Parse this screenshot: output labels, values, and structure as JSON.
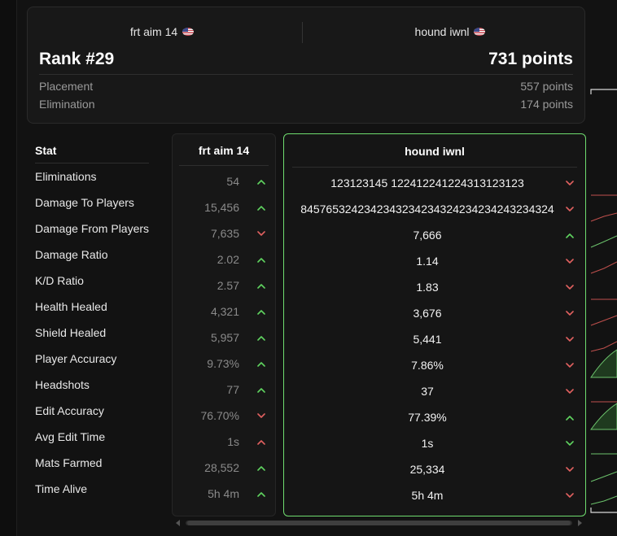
{
  "header": {
    "player1": "frt aim 14",
    "player2": "hound iwnl",
    "rank": "Rank #29",
    "points": "731 points",
    "placement_label": "Placement",
    "placement_value": "557 points",
    "elimination_label": "Elimination",
    "elimination_value": "174 points"
  },
  "table": {
    "stat_header": "Stat",
    "p1_header": "frt aim 14",
    "p2_header": "hound iwnl",
    "colors": {
      "up": "#5fd35f",
      "down": "#e0605f"
    },
    "rows": [
      {
        "label": "Eliminations",
        "p1": "54",
        "p1_trend": "up",
        "p2": "123123145 12241224122431312312­3",
        "p2_trend": "down"
      },
      {
        "label": "Damage To Players",
        "p1": "15,456",
        "p1_trend": "up",
        "p2": "84576532423423432342343242342342432343­24",
        "p2_trend": "down"
      },
      {
        "label": "Damage From Players",
        "p1": "7,635",
        "p1_trend": "down",
        "p2": "7,666",
        "p2_trend": "up"
      },
      {
        "label": "Damage Ratio",
        "p1": "2.02",
        "p1_trend": "up",
        "p2": "1.14",
        "p2_trend": "down"
      },
      {
        "label": "K/D Ratio",
        "p1": "2.57",
        "p1_trend": "up",
        "p2": "1.83",
        "p2_trend": "down"
      },
      {
        "label": "Health Healed",
        "p1": "4,321",
        "p1_trend": "up",
        "p2": "3,676",
        "p2_trend": "down"
      },
      {
        "label": "Shield Healed",
        "p1": "5,957",
        "p1_trend": "up",
        "p2": "5,441",
        "p2_trend": "down"
      },
      {
        "label": "Player Accuracy",
        "p1": "9.73%",
        "p1_trend": "up",
        "p2": "7.86%",
        "p2_trend": "down"
      },
      {
        "label": "Headshots",
        "p1": "77",
        "p1_trend": "up",
        "p2": "37",
        "p2_trend": "down"
      },
      {
        "label": "Edit Accuracy",
        "p1": "76.70%",
        "p1_trend": "down",
        "p2": "77.39%",
        "p2_trend": "up"
      },
      {
        "label": "Avg Edit Time",
        "p1": "1s",
        "p1_trend": "up-red",
        "p2": "1s",
        "p2_trend": "down-green"
      },
      {
        "label": "Mats Farmed",
        "p1": "28,552",
        "p1_trend": "up",
        "p2": "25,334",
        "p2_trend": "down"
      },
      {
        "label": "Time Alive",
        "p1": "5h 4m",
        "p1_trend": "up",
        "p2": "5h 4m",
        "p2_trend": "down"
      }
    ]
  }
}
